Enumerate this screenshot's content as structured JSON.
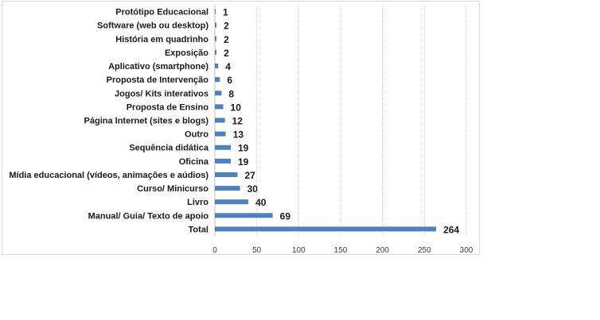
{
  "chart_data": {
    "type": "bar",
    "orientation": "horizontal",
    "title": "",
    "xlabel": "",
    "ylabel": "",
    "categories": [
      "Protótipo Educacional",
      "Software (web ou desktop)",
      "História em quadrinho",
      "Exposição",
      "Aplicativo (smartphone)",
      "Proposta de Intervenção",
      "Jogos/ Kits interativos",
      "Proposta de Ensino",
      "Página Internet (sites e blogs)",
      "Outro",
      "Sequência didática",
      "Oficina",
      "Mídia educacional (vídeos, animações e aúdios)",
      "Curso/ Minicurso",
      "Livro",
      "Manual/ Guia/ Texto de apoio",
      "Total"
    ],
    "values": [
      1,
      2,
      2,
      2,
      4,
      6,
      8,
      10,
      12,
      13,
      19,
      19,
      27,
      30,
      40,
      69,
      264
    ],
    "value_labels": [
      "1",
      "2",
      "2",
      "2",
      "4",
      "6",
      "8",
      "10",
      "12",
      "13",
      "19",
      "19",
      "27",
      "30",
      "40",
      "69",
      "264"
    ],
    "xlim": [
      0,
      300
    ],
    "xticks": [
      0,
      50,
      100,
      150,
      200,
      250,
      300
    ],
    "xtick_labels": [
      "0",
      "50",
      "100",
      "150",
      "200",
      "250",
      "300"
    ],
    "grid": true,
    "legend": "none",
    "bar_color": "#4f81bd"
  }
}
